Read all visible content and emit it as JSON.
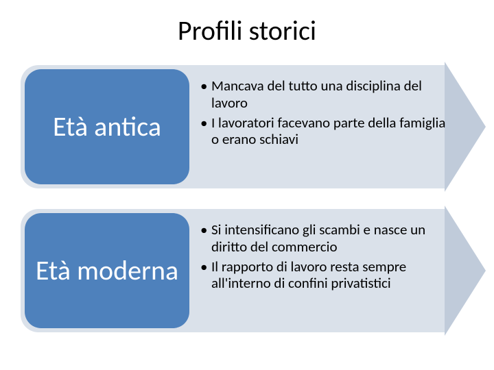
{
  "title": "Profili storici",
  "title_fontsize": 40,
  "title_color": "#000000",
  "background_color": "#ffffff",
  "rows": [
    {
      "label": "Età antica",
      "arrow_body_color": "#dae1ea",
      "arrow_head_color": "#c0cbda",
      "pill_color": "#4e81bc",
      "pill_text_color": "#ffffff",
      "bullets": [
        "Mancava del tutto una disciplina del lavoro",
        "I lavoratori facevano parte della famiglia o erano schiavi"
      ]
    },
    {
      "label": "Età moderna",
      "arrow_body_color": "#dae1ea",
      "arrow_head_color": "#c0cbda",
      "pill_color": "#4e81bc",
      "pill_text_color": "#ffffff",
      "bullets": [
        "Si intensificano gli scambi e nasce un diritto del commercio",
        "Il rapporto di lavoro resta sempre all'interno di confini privatistici"
      ]
    }
  ],
  "pill_fontsize": 40,
  "bullet_fontsize": 21,
  "bullet_color": "#000000"
}
